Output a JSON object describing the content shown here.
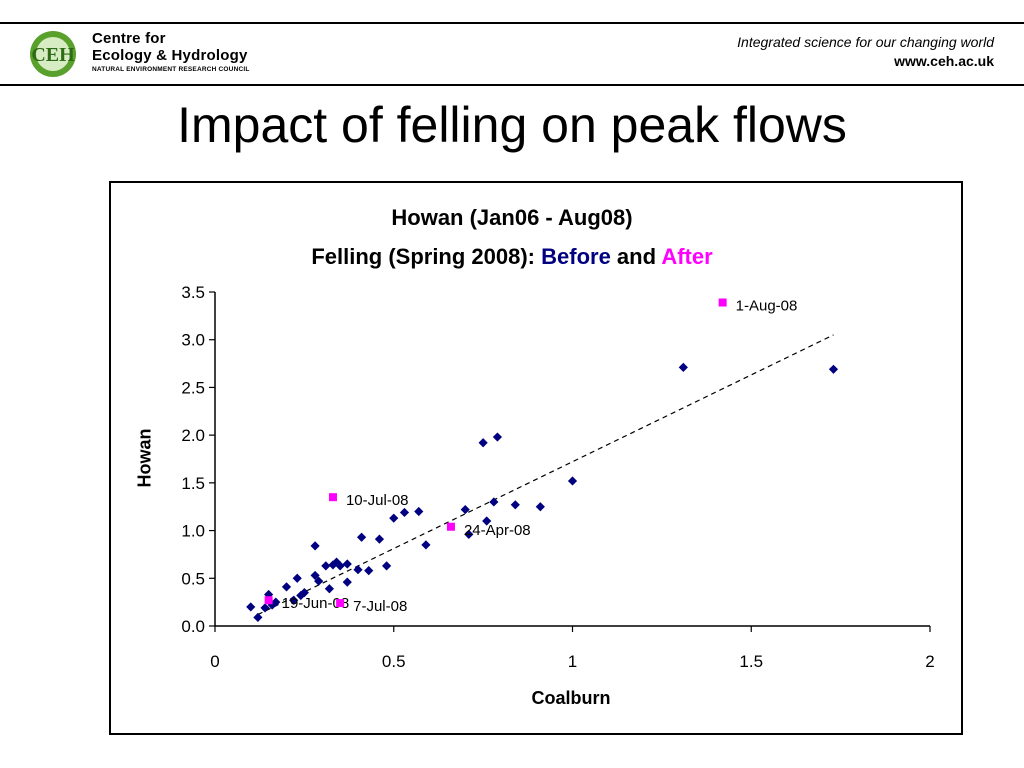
{
  "header": {
    "logo_initials": "CEH",
    "logo_line1": "Centre for",
    "logo_line2": "Ecology & Hydrology",
    "logo_line3": "NATURAL ENVIRONMENT RESEARCH COUNCIL",
    "tagline": "Integrated science for our changing world",
    "url": "www.ceh.ac.uk"
  },
  "slide": {
    "title": "Impact of felling on peak flows"
  },
  "colors": {
    "before": "#000080",
    "after": "#ff00ff",
    "logo_green": "#5aa02c"
  },
  "chart_data": {
    "type": "scatter",
    "title": "Howan (Jan06 - Aug08)",
    "subtitle_prefix": "Felling (Spring 2008): ",
    "subtitle_before": "Before",
    "subtitle_and": " and ",
    "subtitle_after": "After",
    "xlabel": "Coalburn",
    "ylabel": "Howan",
    "xlim": [
      0,
      2
    ],
    "ylim": [
      0,
      3.5
    ],
    "xticks": [
      "0",
      "0.5",
      "1",
      "1.5",
      "2"
    ],
    "yticks": [
      "0.0",
      "0.5",
      "1.0",
      "1.5",
      "2.0",
      "2.5",
      "3.0",
      "3.5"
    ],
    "grid": false,
    "legend": "none",
    "series": [
      {
        "marker": "diamond",
        "points": [
          [
            0.1,
            0.2
          ],
          [
            0.12,
            0.09
          ],
          [
            0.14,
            0.19
          ],
          [
            0.15,
            0.33
          ],
          [
            0.16,
            0.22
          ],
          [
            0.17,
            0.25
          ],
          [
            0.2,
            0.41
          ],
          [
            0.22,
            0.27
          ],
          [
            0.23,
            0.5
          ],
          [
            0.24,
            0.32
          ],
          [
            0.25,
            0.35
          ],
          [
            0.28,
            0.84
          ],
          [
            0.28,
            0.53
          ],
          [
            0.29,
            0.47
          ],
          [
            0.31,
            0.63
          ],
          [
            0.32,
            0.39
          ],
          [
            0.33,
            0.64
          ],
          [
            0.34,
            0.67
          ],
          [
            0.35,
            0.63
          ],
          [
            0.37,
            0.65
          ],
          [
            0.37,
            0.46
          ],
          [
            0.4,
            0.59
          ],
          [
            0.41,
            0.93
          ],
          [
            0.43,
            0.58
          ],
          [
            0.46,
            0.91
          ],
          [
            0.48,
            0.63
          ],
          [
            0.5,
            1.13
          ],
          [
            0.53,
            1.19
          ],
          [
            0.57,
            1.2
          ],
          [
            0.59,
            0.85
          ],
          [
            0.7,
            1.22
          ],
          [
            0.71,
            0.96
          ],
          [
            0.76,
            1.1
          ],
          [
            0.78,
            1.3
          ],
          [
            0.75,
            1.92
          ],
          [
            0.79,
            1.98
          ],
          [
            0.84,
            1.27
          ],
          [
            0.91,
            1.25
          ],
          [
            1.0,
            1.52
          ],
          [
            1.31,
            2.71
          ],
          [
            1.73,
            2.69
          ]
        ]
      },
      {
        "marker": "square",
        "points": [
          {
            "x": 1.42,
            "y": 3.39,
            "label": "1-Aug-08"
          },
          {
            "x": 0.33,
            "y": 1.35,
            "label": "10-Jul-08"
          },
          {
            "x": 0.66,
            "y": 1.04,
            "label": "24-Apr-08"
          },
          {
            "x": 0.15,
            "y": 0.27,
            "label": "19-Jun-08"
          },
          {
            "x": 0.35,
            "y": 0.24,
            "label": "7-Jul-08"
          }
        ]
      }
    ],
    "trendline": {
      "style": "dashed",
      "from": [
        0.12,
        0.12
      ],
      "to": [
        1.73,
        3.05
      ]
    }
  }
}
